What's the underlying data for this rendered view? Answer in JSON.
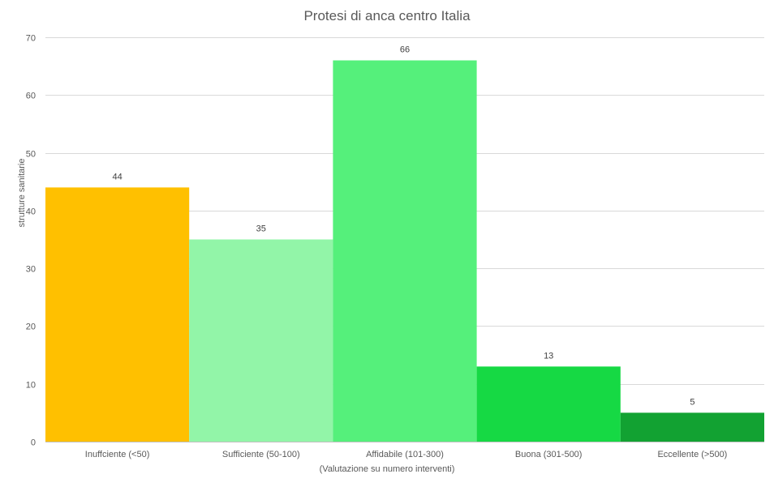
{
  "chart_data": {
    "type": "bar",
    "title": "Protesi di anca centro Italia",
    "xlabel": "(Valutazione su numero interventi)",
    "ylabel": "strutture sanitarie",
    "categories": [
      "Inuffciente (<50)",
      "Sufficiente (50-100)",
      "Affidabile (101-300)",
      "Buona (301-500)",
      "Eccellente (>500)"
    ],
    "values": [
      44,
      35,
      66,
      13,
      5
    ],
    "bar_colors": [
      "#ffc000",
      "#92f5a8",
      "#55f07b",
      "#16d944",
      "#12a232"
    ],
    "ylim": [
      0,
      70
    ],
    "yticks": [
      0,
      10,
      20,
      30,
      40,
      50,
      60,
      70
    ],
    "grid": true,
    "data_labels": true
  }
}
